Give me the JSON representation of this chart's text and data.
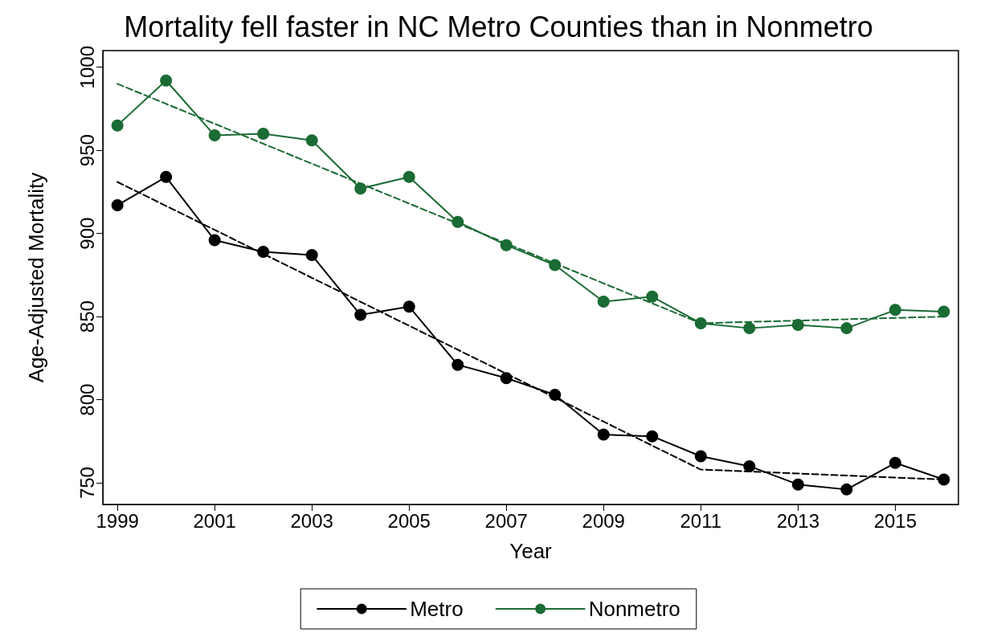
{
  "chart_data": {
    "type": "line",
    "title": "Mortality fell faster in NC Metro Counties than in Nonmetro",
    "xlabel": "Year",
    "ylabel": "Age-Adjusted Mortality",
    "x": [
      1999,
      2000,
      2001,
      2002,
      2003,
      2004,
      2005,
      2006,
      2007,
      2008,
      2009,
      2010,
      2011,
      2012,
      2013,
      2014,
      2015,
      2016
    ],
    "series": [
      {
        "name": "Metro",
        "color": "#000000",
        "marker": "circle",
        "values": [
          917,
          934,
          896,
          889,
          887,
          851,
          856,
          821,
          813,
          803,
          779,
          778,
          766,
          760,
          749,
          746,
          762,
          752
        ]
      },
      {
        "name": "Nonmetro",
        "color": "#1a6b34",
        "marker": "circle",
        "values": [
          965,
          992,
          959,
          960,
          956,
          927,
          934,
          907,
          893,
          881,
          859,
          862,
          846,
          843,
          845,
          843,
          854,
          853
        ]
      },
      {
        "color": "#000000",
        "marker": "none",
        "line_style": "dashed",
        "x": [
          1999,
          2011,
          2016
        ],
        "values": [
          931,
          758,
          752
        ]
      },
      {
        "color": "#1a6b34",
        "marker": "none",
        "line_style": "dashed",
        "x": [
          1999,
          2011,
          2016
        ],
        "values": [
          990,
          846,
          850
        ]
      }
    ],
    "xlim": [
      1998.7,
      2016.3
    ],
    "xticks": [
      1999,
      2001,
      2003,
      2005,
      2007,
      2009,
      2011,
      2013,
      2015
    ],
    "ylim": [
      737,
      1010
    ],
    "yticks": [
      750,
      800,
      850,
      900,
      950,
      1000
    ],
    "grid": false,
    "legend": "bottom"
  }
}
